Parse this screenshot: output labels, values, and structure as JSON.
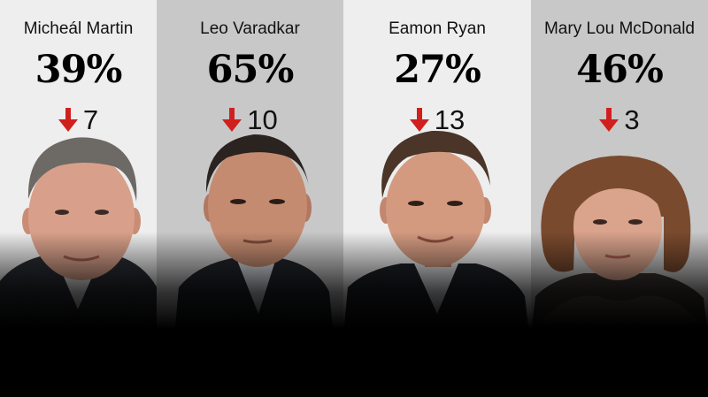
{
  "candidates": [
    {
      "name": "Micheál Martin",
      "rating": "39%",
      "change": "7",
      "direction": "down"
    },
    {
      "name": "Leo Varadkar",
      "rating": "65%",
      "change": "10",
      "direction": "down"
    },
    {
      "name": "Eamon Ryan",
      "rating": "27%",
      "change": "13",
      "direction": "down"
    },
    {
      "name": "Mary Lou McDonald",
      "rating": "46%",
      "change": "3",
      "direction": "down"
    }
  ],
  "colors": {
    "arrow": "#d0201e",
    "panel_light": "#eeeeee",
    "panel_dark": "#c8c8c8",
    "background": "#000000"
  }
}
